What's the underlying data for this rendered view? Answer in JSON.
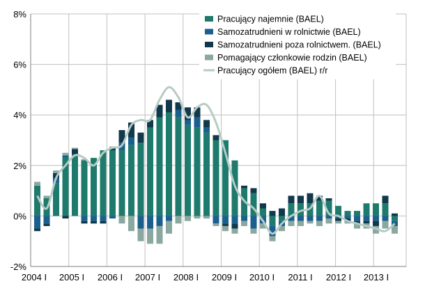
{
  "chart_data": {
    "type": "bar",
    "stacked": true,
    "x_tick_labels": [
      "2004 I",
      "2005 I",
      "2006 I",
      "2007 I",
      "2008 I",
      "2009 I",
      "2010 I",
      "2011 I",
      "2012 I",
      "2013 I"
    ],
    "y_tick_labels": [
      "-2%",
      "0%",
      "2%",
      "4%",
      "6%",
      "8%"
    ],
    "ylim": [
      -2,
      8
    ],
    "grid": true,
    "legend_position": "top-right",
    "categories": [
      "2004 I",
      "2004 II",
      "2004 III",
      "2004 IV",
      "2005 I",
      "2005 II",
      "2005 III",
      "2005 IV",
      "2006 I",
      "2006 II",
      "2006 III",
      "2006 IV",
      "2007 I",
      "2007 II",
      "2007 III",
      "2007 IV",
      "2008 I",
      "2008 II",
      "2008 III",
      "2008 IV",
      "2009 I",
      "2009 II",
      "2009 III",
      "2009 IV",
      "2010 I",
      "2010 II",
      "2010 III",
      "2010 IV",
      "2011 I",
      "2011 II",
      "2011 III",
      "2011 IV",
      "2012 I",
      "2012 II",
      "2012 III",
      "2012 IV",
      "2013 I",
      "2013 II",
      "2013 III"
    ],
    "series": [
      {
        "name": "Pracujący najemnie (BAEL)",
        "color": "#1d7a6c",
        "values": [
          1.2,
          0.7,
          1.3,
          2.3,
          2.4,
          2.2,
          2.3,
          2.6,
          2.6,
          2.6,
          2.8,
          2.9,
          3.5,
          3.9,
          4.1,
          3.9,
          3.6,
          3.5,
          3.3,
          3.0,
          3.0,
          2.2,
          1.1,
          0.9,
          0.3,
          -0.4,
          -0.2,
          0.5,
          0.5,
          0.5,
          0.6,
          0.6,
          0.4,
          0.2,
          0.2,
          0.5,
          0.5,
          0.5,
          -0.2
        ]
      },
      {
        "name": "Samozatrudnieni w rolnictwie (BAEL)",
        "color": "#1a5f8e",
        "values": [
          -0.5,
          -0.3,
          0.2,
          0.1,
          0.05,
          -0.2,
          -0.2,
          -0.2,
          -0.1,
          0.3,
          0.3,
          -0.5,
          -0.5,
          -0.4,
          -0.2,
          0.3,
          0.2,
          0.4,
          0.2,
          -0.3,
          -0.3,
          -0.3,
          -0.2,
          -0.5,
          -0.3,
          -0.4,
          -0.2,
          -0.2,
          -0.2,
          -0.2,
          -0.2,
          -0.1,
          -0.1,
          -0.1,
          -0.2,
          -0.2,
          -0.2,
          -0.2,
          -0.2
        ]
      },
      {
        "name": "Samozatrudnieni poza rolnictwem. (BAEL)",
        "color": "#12384c",
        "values": [
          -0.1,
          -0.1,
          0.2,
          -0.1,
          0.2,
          -0.1,
          -0.1,
          -0.1,
          0.1,
          0.5,
          0.6,
          0.4,
          0.3,
          0.5,
          0.5,
          0.3,
          0.5,
          0.4,
          0.3,
          0.2,
          -0.1,
          -0.2,
          0.1,
          0.2,
          0.2,
          0.2,
          0.3,
          0.3,
          0.3,
          0.4,
          0.2,
          0.1,
          -0.1,
          -0.1,
          -0.1,
          -0.1,
          -0.2,
          0.3,
          0.1
        ]
      },
      {
        "name": "Pomagający członkowie rodzin (BAEL)",
        "color": "#8aa89f",
        "values": [
          0.15,
          0.1,
          0.1,
          0.1,
          0.05,
          0.05,
          0.0,
          0.0,
          0.05,
          -0.3,
          -0.6,
          -0.5,
          -0.6,
          -0.7,
          -0.5,
          -0.3,
          -0.2,
          -0.1,
          -0.1,
          -0.1,
          -0.2,
          -0.2,
          -0.2,
          -0.2,
          -0.2,
          -0.2,
          -0.2,
          -0.2,
          -0.2,
          -0.1,
          -0.2,
          -0.2,
          -0.1,
          -0.1,
          -0.2,
          -0.2,
          -0.3,
          -0.3,
          -0.3
        ]
      }
    ],
    "line_series": {
      "name": "Pracujący ogółem (BAEL) r/r",
      "color": "#b7cbc5",
      "values": [
        0.8,
        0.3,
        1.5,
        2.0,
        2.4,
        2.3,
        2.0,
        2.5,
        2.7,
        2.8,
        3.6,
        3.8,
        3.8,
        4.6,
        5.1,
        4.7,
        3.9,
        4.3,
        4.4,
        3.7,
        2.5,
        1.2,
        0.6,
        0.3,
        -0.2,
        -0.7,
        -0.3,
        0.0,
        0.2,
        0.3,
        0.8,
        0.1,
        0.0,
        -0.2,
        -0.3,
        -0.4,
        -0.5,
        -0.6,
        -0.3
      ]
    }
  }
}
